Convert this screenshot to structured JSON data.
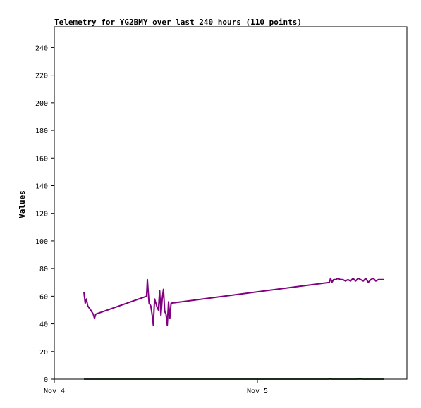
{
  "chart_data": {
    "type": "line",
    "title": "Telemetry for YG2BMY over last 240 hours (110 points)",
    "xlabel": "",
    "ylabel": "Values",
    "ylim": [
      0,
      255
    ],
    "yticks": [
      0,
      20,
      40,
      60,
      80,
      100,
      120,
      140,
      160,
      180,
      200,
      220,
      240
    ],
    "x_ticks": [
      {
        "label": "Nov 4",
        "hour": 0
      },
      {
        "label": "Nov 5",
        "hour": 24
      }
    ],
    "xlim_hours": [
      0,
      40.5
    ],
    "grid": false,
    "series": [
      {
        "color": "#800080",
        "points": [
          [
            3.5,
            63
          ],
          [
            3.65,
            55
          ],
          [
            3.8,
            58
          ],
          [
            3.95,
            53
          ],
          [
            4.3,
            50
          ],
          [
            4.6,
            47
          ],
          [
            4.75,
            44
          ],
          [
            4.9,
            47
          ],
          [
            10.9,
            60
          ],
          [
            11.0,
            72
          ],
          [
            11.1,
            63
          ],
          [
            11.2,
            55
          ],
          [
            11.4,
            53
          ],
          [
            11.55,
            47
          ],
          [
            11.7,
            39
          ],
          [
            11.85,
            58
          ],
          [
            12.0,
            55
          ],
          [
            12.15,
            52
          ],
          [
            12.3,
            50
          ],
          [
            12.45,
            64
          ],
          [
            12.6,
            46
          ],
          [
            12.75,
            58
          ],
          [
            12.9,
            65
          ],
          [
            13.05,
            49
          ],
          [
            13.2,
            47
          ],
          [
            13.35,
            39
          ],
          [
            13.5,
            56
          ],
          [
            13.65,
            44
          ],
          [
            13.8,
            55
          ],
          [
            32.5,
            70
          ],
          [
            32.65,
            73
          ],
          [
            32.8,
            70
          ],
          [
            33.0,
            72
          ],
          [
            33.3,
            72
          ],
          [
            33.5,
            73
          ],
          [
            33.8,
            72
          ],
          [
            34.1,
            72
          ],
          [
            34.4,
            71
          ],
          [
            34.7,
            72
          ],
          [
            35.0,
            71
          ],
          [
            35.3,
            73
          ],
          [
            35.6,
            71
          ],
          [
            35.9,
            73
          ],
          [
            36.2,
            72
          ],
          [
            36.5,
            71
          ],
          [
            36.8,
            73
          ],
          [
            37.1,
            70
          ],
          [
            37.4,
            72
          ],
          [
            37.7,
            73
          ],
          [
            38.0,
            71
          ],
          [
            38.3,
            72
          ],
          [
            38.6,
            72
          ],
          [
            39.0,
            72
          ]
        ]
      },
      {
        "color": "#006400",
        "points": [
          [
            3.5,
            0
          ],
          [
            32.5,
            0
          ],
          [
            32.6,
            0.6
          ],
          [
            32.8,
            0
          ],
          [
            35.8,
            0
          ],
          [
            35.9,
            0.6
          ],
          [
            36.1,
            0
          ],
          [
            36.2,
            0.6
          ],
          [
            36.4,
            0
          ],
          [
            39.0,
            0
          ]
        ]
      },
      {
        "color": "#000000",
        "points": [
          [
            3.5,
            0
          ],
          [
            39.0,
            0
          ]
        ]
      }
    ]
  }
}
